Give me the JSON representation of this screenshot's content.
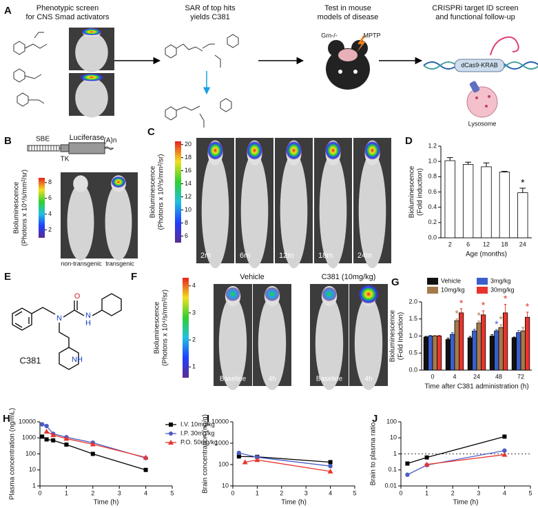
{
  "panel_letters": [
    "A",
    "B",
    "C",
    "D",
    "E",
    "F",
    "G",
    "H",
    "I",
    "J"
  ],
  "panel_a": {
    "steps": [
      [
        "Phenotypic screen",
        "for CNS Smad activators"
      ],
      [
        "SAR of top hits",
        "yields C381"
      ],
      [
        "Test in mouse",
        "models of disease"
      ],
      [
        "CRISPRi target ID screen",
        "and functional follow-up"
      ]
    ],
    "models": [
      "Grn-/-",
      "MPTP"
    ],
    "crispr": "dCas9-KRAB",
    "organelle": "Lysosome"
  },
  "panel_b": {
    "construct": [
      "SBE",
      "TK",
      "Luciferase",
      "(A)n"
    ],
    "colorbar_label": [
      "Bioluminescence",
      "(Photons x 10⁴/s/mm²/sr)"
    ],
    "colorbar_ticks": [
      2,
      4,
      6,
      8
    ],
    "colorbar_lim": [
      1,
      8.6
    ],
    "mice": [
      "non-transgenic",
      "transgenic"
    ]
  },
  "panel_c": {
    "colorbar_label": [
      "Bioluminescence",
      "(Photons x 10³/s/mm²/sr)"
    ],
    "colorbar_ticks": [
      6,
      8,
      10,
      12,
      14,
      16,
      18,
      20
    ],
    "colorbar_lim": [
      5,
      20.5
    ],
    "ages": [
      "2m",
      "6m",
      "12m",
      "18m",
      "24m"
    ]
  },
  "panel_e": {
    "compound": "C381",
    "atoms": [
      "O",
      "N",
      "N",
      "H",
      "NH"
    ]
  },
  "panel_f": {
    "groups": [
      "Vehicle",
      "C381 (10mg/kg)"
    ],
    "colorbar_label": [
      "Bioluminescence",
      "(Photons x 10⁴/s/mm²/sr)"
    ],
    "colorbar_ticks": [
      1,
      2,
      3,
      4
    ],
    "colorbar_lim": [
      0.6,
      4.3
    ],
    "timepoints": [
      "Baseline",
      "4h",
      "Baseline",
      "4h"
    ]
  },
  "chart_data": [
    {
      "type": "bar",
      "categories": [
        "2",
        "6",
        "12",
        "18",
        "24"
      ],
      "values": [
        1.01,
        0.96,
        0.93,
        0.86,
        0.59
      ],
      "errors": [
        0.04,
        0.03,
        0.05,
        0.01,
        0.06
      ],
      "color": "#ffffff",
      "ylim": [
        0,
        1.2
      ],
      "yticks": [
        {
          "value": 0,
          "label": "0.0"
        },
        {
          "value": 0.2,
          "label": "0.2"
        },
        {
          "value": 0.4,
          "label": "0.4"
        },
        {
          "value": 0.6,
          "label": "0.6"
        },
        {
          "value": 0.8,
          "label": "0.8"
        },
        {
          "value": 1,
          "label": "1.0"
        },
        {
          "value": 1.2,
          "label": "1.2"
        }
      ],
      "xlabel": "Age (months)",
      "ylabel": [
        "Bioluminescence",
        "(Fold induction)"
      ],
      "annotations": [
        {
          "text": "*",
          "index": 4
        }
      ]
    },
    {
      "type": "bar",
      "categories": [
        "0",
        "4",
        "24",
        "48",
        "72"
      ],
      "series": [
        {
          "name": "Vehicle",
          "color": "#111111",
          "values": [
            0.97,
            0.9,
            0.95,
            1.0,
            0.95
          ],
          "errors": [
            0.02,
            0.04,
            0.04,
            0.04,
            0.02
          ]
        },
        {
          "name": "3mg/kg",
          "color": "#3a5fcd",
          "values": [
            1.0,
            1.05,
            1.15,
            1.15,
            1.1
          ],
          "errors": [
            0.02,
            0.05,
            0.05,
            0.04,
            0.06
          ]
        },
        {
          "name": "10mg/kg",
          "color": "#a57a4a",
          "values": [
            1.0,
            1.45,
            1.38,
            1.25,
            1.15
          ],
          "errors": [
            0.02,
            0.05,
            0.06,
            0.08,
            0.1
          ]
        },
        {
          "name": "30mg/kg",
          "color": "#e8342c",
          "values": [
            1.0,
            1.68,
            1.62,
            1.68,
            1.55
          ],
          "errors": [
            0.02,
            0.12,
            0.12,
            0.25,
            0.15
          ]
        }
      ],
      "ylim": [
        0,
        2
      ],
      "yticks": [
        {
          "value": 0,
          "label": "0.0"
        },
        {
          "value": 0.5,
          "label": "0.5"
        },
        {
          "value": 1,
          "label": "1.0"
        },
        {
          "value": 1.5,
          "label": "1.5"
        },
        {
          "value": 2,
          "label": "2.0"
        }
      ],
      "xlabel": "Time after C381 administration (h)",
      "ylabel": [
        "Bioluminescence",
        "(Fold Induction)"
      ],
      "legend": "top",
      "annotations": [
        {
          "text": "*",
          "series": 2,
          "index": 1
        },
        {
          "text": "*",
          "series": 3,
          "index": 1
        },
        {
          "text": "*",
          "series": 2,
          "index": 2
        },
        {
          "text": "*",
          "series": 3,
          "index": 2
        },
        {
          "text": "*",
          "series": 1,
          "index": 3
        },
        {
          "text": "*",
          "series": 2,
          "index": 3
        },
        {
          "text": "*",
          "series": 3,
          "index": 3
        },
        {
          "text": "*",
          "series": 3,
          "index": 4
        }
      ]
    },
    {
      "type": "line",
      "log_y": true,
      "xlim": [
        0,
        5
      ],
      "xticks": [
        0,
        1,
        2,
        3,
        4,
        5
      ],
      "ylim": [
        1,
        10000
      ],
      "yticks": [
        1,
        10,
        100,
        1000,
        10000
      ],
      "series": [
        {
          "name": "I.V. 10mg/kg",
          "color": "#000000",
          "marker": "square",
          "x": [
            0.083,
            0.25,
            0.5,
            1,
            2,
            4
          ],
          "values": [
            1200,
            800,
            700,
            380,
            100,
            10
          ]
        },
        {
          "name": "I.P. 30mg/kg",
          "color": "#4a5cc4",
          "marker": "circle",
          "x": [
            0.083,
            0.25,
            0.5,
            1,
            2,
            4
          ],
          "values": [
            7000,
            5500,
            1800,
            1100,
            500,
            55
          ]
        },
        {
          "name": "P.O. 50mg/kg",
          "color": "#e8342c",
          "marker": "triangle",
          "x": [
            0.25,
            0.5,
            1,
            2,
            4
          ],
          "values": [
            2500,
            1500,
            900,
            400,
            60
          ]
        }
      ],
      "xlabel": "Time (h)",
      "ylabel": "Plasma concentration (ng/mL)",
      "legend": "upper right"
    },
    {
      "type": "line",
      "log_y": true,
      "xlim": [
        0,
        5
      ],
      "xticks": [
        0,
        1,
        2,
        3,
        4,
        5
      ],
      "ylim": [
        10,
        10000
      ],
      "yticks": [
        10,
        100,
        1000,
        10000
      ],
      "series": [
        {
          "color": "#000000",
          "marker": "square",
          "x": [
            0.25,
            1,
            4
          ],
          "values": [
            240,
            230,
            130
          ]
        },
        {
          "color": "#4a5cc4",
          "marker": "circle",
          "x": [
            0.25,
            1,
            4
          ],
          "values": [
            350,
            220,
            85
          ]
        },
        {
          "color": "#e8342c",
          "marker": "triangle",
          "x": [
            0.5,
            1,
            4
          ],
          "values": [
            130,
            165,
            48
          ]
        }
      ],
      "xlabel": "Time (h)",
      "ylabel": "Brain concentration (ng/g)"
    },
    {
      "type": "line",
      "log_y": true,
      "xlim": [
        0,
        5
      ],
      "xticks": [
        0,
        1,
        2,
        3,
        4,
        5
      ],
      "ylim": [
        0.01,
        100
      ],
      "yticks": [
        0.01,
        0.1,
        1,
        10,
        100
      ],
      "series": [
        {
          "color": "#000000",
          "marker": "square",
          "x": [
            0.25,
            1,
            4
          ],
          "values": [
            0.25,
            0.6,
            12
          ]
        },
        {
          "color": "#4a5cc4",
          "marker": "circle",
          "x": [
            0.25,
            1,
            4
          ],
          "values": [
            0.05,
            0.2,
            1.6
          ]
        },
        {
          "color": "#e8342c",
          "marker": "triangle",
          "x": [
            1,
            4
          ],
          "values": [
            0.22,
            0.9
          ]
        }
      ],
      "reference_line": 1,
      "xlabel": "Time (h)",
      "ylabel": "Brain to plasma ratio"
    }
  ]
}
